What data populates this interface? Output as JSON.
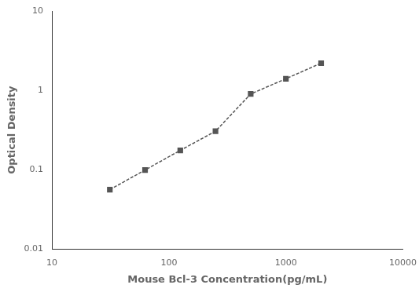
{
  "chart_data": {
    "type": "line",
    "x": [
      31.25,
      62.5,
      125,
      250,
      500,
      1000,
      2000
    ],
    "values": [
      0.056,
      0.099,
      0.175,
      0.305,
      0.9,
      1.4,
      2.2
    ],
    "xlabel": "Mouse Bcl-3 Concentration(pg/mL)",
    "ylabel": "Optical Density",
    "xlim": [
      10,
      10000
    ],
    "ylim": [
      0.01,
      10
    ],
    "xticks": [
      10,
      100,
      1000,
      10000
    ],
    "yticks": [
      0.01,
      0.1,
      1,
      10
    ],
    "log": true,
    "grid": false,
    "color": "#555555",
    "marker": "square",
    "line_style": "dashed"
  }
}
